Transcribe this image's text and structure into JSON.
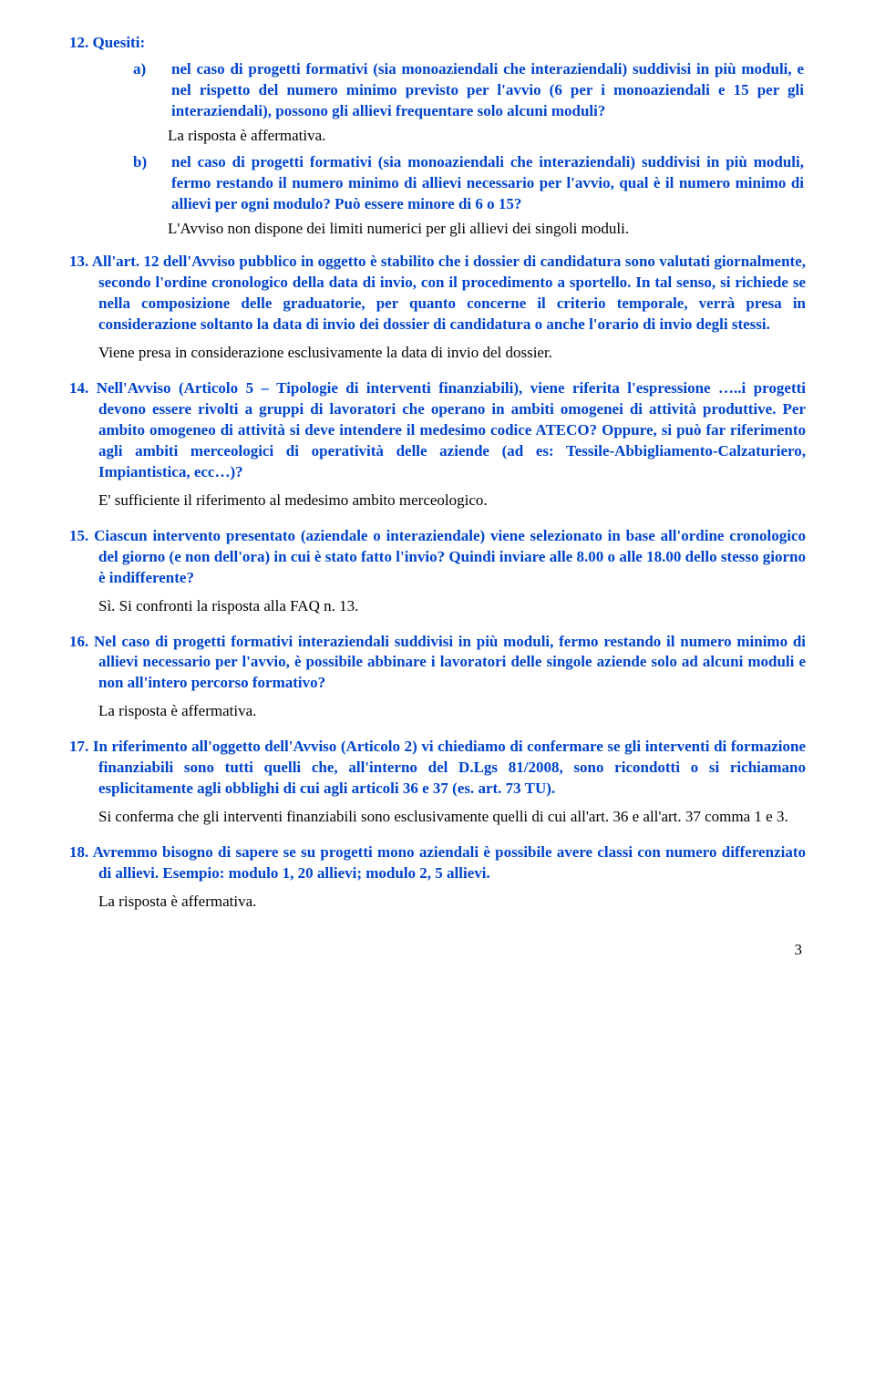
{
  "item12": {
    "heading": "12. Quesiti:",
    "subs": [
      {
        "label": "a)",
        "q": "nel caso di progetti formativi (sia monoaziendali che interaziendali) suddivisi in più moduli, e nel rispetto del numero minimo previsto per l'avvio (6 per i monoaziendali e 15 per gli interaziendali), possono gli allievi frequentare solo alcuni moduli?",
        "a": "La risposta è affermativa."
      },
      {
        "label": "b)",
        "q": "nel caso di progetti formativi (sia monoaziendali che interaziendali) suddivisi in più moduli, fermo restando il numero minimo di allievi necessario per l'avvio, qual è il numero minimo di allievi per ogni modulo? Può essere minore di 6 o 15?",
        "a": "L'Avviso non dispone dei limiti numerici per gli allievi dei singoli moduli."
      }
    ]
  },
  "faqs": [
    {
      "num": "13.",
      "q": "All'art. 12 dell'Avviso pubblico in oggetto è stabilito che i dossier di candidatura sono valutati giornalmente, secondo l'ordine cronologico della data di invio, con il procedimento a sportello. In tal senso, si richiede se nella composizione delle graduatorie, per quanto concerne il criterio temporale, verrà presa in considerazione soltanto la data di invio dei dossier di candidatura o anche l'orario di invio degli stessi.",
      "a": "Viene presa in considerazione esclusivamente la data di invio del dossier."
    },
    {
      "num": "14.",
      "q": "Nell'Avviso (Articolo 5 – Tipologie di interventi finanziabili), viene riferita l'espressione …..i progetti devono essere rivolti a gruppi di lavoratori che operano in ambiti omogenei di attività produttive. Per ambito omogeneo di attività si deve intendere il medesimo codice ATECO? Oppure, si può far riferimento agli ambiti merceologici di operatività delle aziende (ad es: Tessile-Abbigliamento-Calzaturiero, Impiantistica, ecc…)?",
      "a": "E' sufficiente il riferimento al medesimo ambito merceologico."
    },
    {
      "num": "15.",
      "q": "Ciascun intervento presentato (aziendale o interaziendale) viene selezionato in base all'ordine cronologico del giorno (e non dell'ora) in cui è stato fatto l'invio? Quindi inviare alle 8.00 o alle 18.00 dello stesso giorno è indifferente?",
      "a": "Sì. Si confronti la risposta alla FAQ n. 13."
    },
    {
      "num": "16.",
      "q": "Nel caso di progetti formativi interaziendali suddivisi in più moduli, fermo restando il numero minimo di allievi necessario per l'avvio, è possibile abbinare i lavoratori delle singole aziende solo ad alcuni moduli e non all'intero percorso formativo?",
      "a": "La risposta è affermativa."
    },
    {
      "num": "17.",
      "q": "In riferimento all'oggetto dell'Avviso (Articolo 2) vi chiediamo di confermare se gli interventi di formazione finanziabili sono tutti quelli che, all'interno del D.Lgs 81/2008, sono ricondotti o si richiamano esplicitamente agli obblighi di cui agli articoli 36 e 37 (es. art. 73 TU).",
      "a": "Si conferma che gli interventi finanziabili sono esclusivamente quelli di cui all'art. 36 e all'art. 37 comma 1 e 3."
    },
    {
      "num": "18.",
      "q": "Avremmo bisogno di sapere se su progetti mono aziendali è possibile avere classi con numero differenziato di allievi. Esempio: modulo 1, 20 allievi; modulo 2, 5 allievi.",
      "a": "La risposta è affermativa."
    }
  ],
  "pageNumber": "3",
  "colors": {
    "question": "#0044cc",
    "answer": "#000000",
    "background": "#ffffff"
  },
  "fontSizes": {
    "body": 17
  }
}
